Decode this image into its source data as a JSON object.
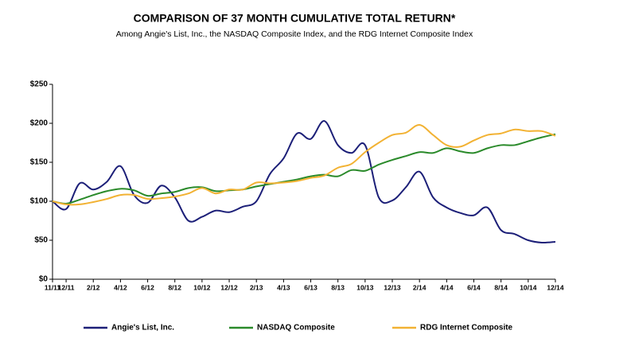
{
  "chart_data": {
    "type": "line",
    "title": "COMPARISON OF 37 MONTH CUMULATIVE TOTAL RETURN*",
    "subtitle": "Among Angie's List, Inc., the NASDAQ Composite Index, and the RDG Internet Composite Index",
    "categories": [
      "11/11",
      "12/11",
      null,
      "2/12",
      null,
      "4/12",
      null,
      "6/12",
      null,
      "8/12",
      null,
      "10/12",
      null,
      "12/12",
      null,
      "2/13",
      null,
      "4/13",
      null,
      "6/13",
      null,
      "8/13",
      null,
      "10/13",
      null,
      "12/13",
      null,
      "2/14",
      null,
      "4/14",
      null,
      "6/14",
      null,
      "8/14",
      null,
      "10/14",
      null,
      "12/14"
    ],
    "series": [
      {
        "name": "Angie's List, Inc.",
        "color": "#1c1f78",
        "values": [
          100,
          90,
          123,
          115,
          125,
          145,
          108,
          98,
          120,
          105,
          75,
          80,
          88,
          86,
          93,
          100,
          135,
          155,
          187,
          180,
          203,
          172,
          162,
          172,
          105,
          101,
          118,
          138,
          105,
          92,
          85,
          82,
          92,
          63,
          58,
          50,
          47,
          48
        ]
      },
      {
        "name": "NASDAQ Composite",
        "color": "#2a8a2a",
        "values": [
          100,
          97,
          102,
          108,
          113,
          116,
          114,
          107,
          110,
          112,
          117,
          118,
          113,
          114,
          115,
          119,
          122,
          125,
          128,
          132,
          134,
          132,
          140,
          139,
          147,
          153,
          158,
          163,
          162,
          168,
          164,
          162,
          168,
          172,
          172,
          177,
          182,
          186
        ]
      },
      {
        "name": "RDG Internet Composite",
        "color": "#f2b233",
        "values": [
          100,
          96,
          96,
          99,
          103,
          108,
          108,
          103,
          104,
          106,
          110,
          117,
          110,
          115,
          115,
          124,
          123,
          124,
          126,
          130,
          133,
          143,
          148,
          163,
          175,
          185,
          188,
          198,
          185,
          172,
          170,
          178,
          185,
          187,
          192,
          190,
          190,
          184
        ]
      }
    ],
    "ylim": [
      0,
      250
    ],
    "yticks": [
      {
        "value": 0,
        "label": "$0"
      },
      {
        "value": 50,
        "label": "$50"
      },
      {
        "value": 100,
        "label": "$100"
      },
      {
        "value": 150,
        "label": "$150"
      },
      {
        "value": 200,
        "label": "$200"
      },
      {
        "value": 250,
        "label": "$250"
      }
    ]
  }
}
